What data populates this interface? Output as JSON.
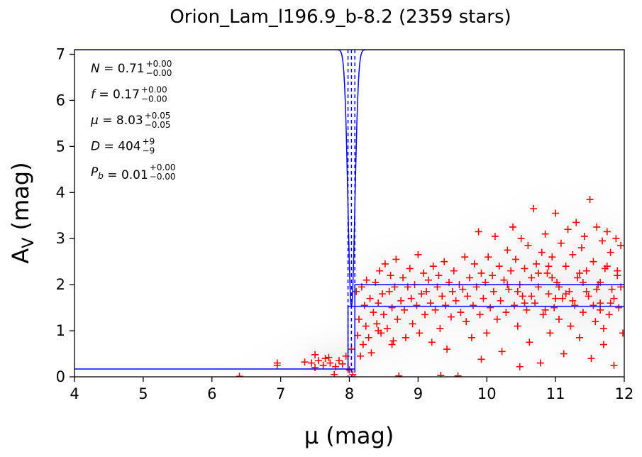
{
  "chart_data": {
    "type": "scatter",
    "title": "Orion_Lam_l196.9_b-8.2 (2359 stars)",
    "xlabel": "μ (mag)",
    "ylabel_main": "A",
    "ylabel_sub": "V",
    "ylabel_unit": " (mag)",
    "xlim": [
      4,
      12
    ],
    "ylim": [
      0,
      7.1
    ],
    "x_ticks": [
      "4",
      "5",
      "6",
      "7",
      "8",
      "9",
      "10",
      "11",
      "12"
    ],
    "y_ticks": [
      "0",
      "1",
      "2",
      "3",
      "4",
      "5",
      "6",
      "7"
    ],
    "annotations": [
      {
        "sym": "N",
        "val": "0.71",
        "sup": "+0.00",
        "sub": "−0.00"
      },
      {
        "sym": "f",
        "val": "0.17",
        "sup": "+0.00",
        "sub": "−0.00"
      },
      {
        "sym": "μ",
        "val": "8.03",
        "sup": "+0.05",
        "sub": "−0.05"
      },
      {
        "sym": "D",
        "val": "404",
        "sup": "+9",
        "sub": "−9"
      },
      {
        "sym": "P",
        "symsub": "b",
        "val": "0.01",
        "sup": "+0.00",
        "sub": "−0.00"
      }
    ],
    "model": {
      "foreground_av": 0.17,
      "jump_mu": 8.03,
      "background_upper_av": 2.0,
      "background_lower_av": 1.53,
      "jump_mu_lower": 7.98,
      "jump_mu_upper": 8.08
    },
    "colors": {
      "stars": "#ff0000",
      "model": "#0000ff",
      "density": "#000000"
    },
    "stars": [
      [
        6.4,
        0.01
      ],
      [
        6.95,
        0.3
      ],
      [
        6.95,
        0.25
      ],
      [
        7.35,
        0.32
      ],
      [
        7.45,
        0.3
      ],
      [
        7.5,
        0.2
      ],
      [
        7.55,
        0.35
      ],
      [
        7.5,
        0.48
      ],
      [
        7.62,
        0.25
      ],
      [
        7.65,
        0.4
      ],
      [
        7.72,
        0.3
      ],
      [
        7.78,
        0.05
      ],
      [
        7.8,
        0.22
      ],
      [
        7.85,
        0.35
      ],
      [
        7.9,
        0.28
      ],
      [
        7.95,
        0.45
      ],
      [
        8.0,
        0.15
      ],
      [
        8.03,
        0.6
      ],
      [
        8.05,
        0.05
      ],
      [
        8.1,
        1.85
      ],
      [
        8.12,
        0.9
      ],
      [
        8.14,
        1.25
      ],
      [
        8.16,
        0.45
      ],
      [
        8.18,
        1.95
      ],
      [
        8.2,
        0.7
      ],
      [
        8.22,
        1.55
      ],
      [
        8.24,
        1.1
      ],
      [
        8.25,
        2.1
      ],
      [
        8.28,
        0.85
      ],
      [
        8.3,
        1.7
      ],
      [
        8.32,
        0.52
      ],
      [
        8.35,
        1.4
      ],
      [
        8.38,
        2.05
      ],
      [
        8.4,
        1.15
      ],
      [
        8.42,
        1.6
      ],
      [
        8.44,
        2.3
      ],
      [
        8.46,
        0.95
      ],
      [
        8.48,
        1.8
      ],
      [
        8.5,
        1.35
      ],
      [
        8.52,
        2.45
      ],
      [
        8.55,
        1.05
      ],
      [
        8.58,
        1.85
      ],
      [
        8.6,
        2.2
      ],
      [
        8.62,
        1.5
      ],
      [
        8.64,
        0.78
      ],
      [
        8.66,
        1.95
      ],
      [
        8.68,
        2.55
      ],
      [
        8.7,
        1.25
      ],
      [
        8.72,
        0.02
      ],
      [
        8.75,
        1.65
      ],
      [
        8.78,
        2.15
      ],
      [
        8.8,
        1.45
      ],
      [
        8.82,
        0.85
      ],
      [
        8.85,
        1.95
      ],
      [
        8.88,
        2.35
      ],
      [
        8.9,
        1.7
      ],
      [
        8.92,
        1.15
      ],
      [
        8.95,
        2.0
      ],
      [
        8.98,
        1.55
      ],
      [
        9.0,
        2.65
      ],
      [
        9.02,
        0.95
      ],
      [
        9.05,
        1.8
      ],
      [
        9.08,
        2.25
      ],
      [
        9.1,
        1.35
      ],
      [
        9.12,
        1.85
      ],
      [
        9.15,
        2.1
      ],
      [
        9.18,
        1.6
      ],
      [
        9.2,
        0.75
      ],
      [
        9.22,
        2.4
      ],
      [
        9.25,
        1.45
      ],
      [
        9.28,
        1.95
      ],
      [
        9.3,
        2.2
      ],
      [
        9.32,
        1.05
      ],
      [
        9.35,
        1.75
      ],
      [
        9.38,
        2.5
      ],
      [
        9.4,
        1.55
      ],
      [
        9.42,
        0.6
      ],
      [
        9.45,
        2.05
      ],
      [
        9.48,
        1.3
      ],
      [
        9.5,
        1.85
      ],
      [
        9.52,
        2.3
      ],
      [
        9.55,
        1.65
      ],
      [
        9.58,
        0.02
      ],
      [
        9.6,
        2.0
      ],
      [
        9.62,
        1.4
      ],
      [
        9.65,
        1.9
      ],
      [
        9.68,
        2.6
      ],
      [
        9.7,
        1.2
      ],
      [
        9.72,
        1.75
      ],
      [
        9.75,
        2.15
      ],
      [
        9.78,
        0.85
      ],
      [
        9.8,
        1.55
      ],
      [
        9.82,
        2.45
      ],
      [
        9.85,
        1.95
      ],
      [
        9.88,
        3.15
      ],
      [
        9.9,
        1.35
      ],
      [
        9.92,
        2.25
      ],
      [
        9.95,
        1.7
      ],
      [
        9.98,
        2.05
      ],
      [
        10.0,
        0.95
      ],
      [
        10.02,
        2.6
      ],
      [
        10.05,
        1.5
      ],
      [
        10.08,
        2.2
      ],
      [
        10.1,
        1.85
      ],
      [
        10.12,
        3.05
      ],
      [
        10.15,
        1.25
      ],
      [
        10.18,
        2.4
      ],
      [
        10.2,
        1.65
      ],
      [
        10.22,
        0.55
      ],
      [
        10.25,
        2.1
      ],
      [
        10.28,
        1.4
      ],
      [
        10.3,
        2.75
      ],
      [
        10.32,
        1.9
      ],
      [
        10.35,
        2.3
      ],
      [
        10.38,
        3.25
      ],
      [
        10.4,
        1.55
      ],
      [
        10.42,
        2.55
      ],
      [
        10.45,
        1.1
      ],
      [
        10.48,
        2.0
      ],
      [
        10.5,
        3.0
      ],
      [
        10.52,
        1.75
      ],
      [
        10.55,
        2.35
      ],
      [
        10.58,
        1.45
      ],
      [
        10.6,
        2.85
      ],
      [
        10.62,
        0.75
      ],
      [
        10.65,
        2.15
      ],
      [
        10.68,
        3.65
      ],
      [
        10.7,
        1.6
      ],
      [
        10.72,
        2.45
      ],
      [
        10.75,
        1.95
      ],
      [
        10.78,
        0.3
      ],
      [
        10.8,
        2.7
      ],
      [
        10.82,
        1.35
      ],
      [
        10.85,
        3.1
      ],
      [
        10.88,
        2.25
      ],
      [
        10.9,
        1.8
      ],
      [
        10.92,
        0.95
      ],
      [
        10.95,
        2.6
      ],
      [
        10.98,
        1.5
      ],
      [
        11.0,
        3.55
      ],
      [
        11.02,
        2.05
      ],
      [
        11.05,
        1.25
      ],
      [
        11.08,
        2.9
      ],
      [
        11.1,
        1.7
      ],
      [
        11.12,
        0.5
      ],
      [
        11.15,
        2.4
      ],
      [
        11.18,
        3.2
      ],
      [
        11.2,
        1.85
      ],
      [
        11.22,
        1.1
      ],
      [
        11.25,
        2.65
      ],
      [
        11.28,
        1.55
      ],
      [
        11.3,
        3.35
      ],
      [
        11.32,
        2.15
      ],
      [
        11.35,
        0.85
      ],
      [
        11.38,
        2.8
      ],
      [
        11.4,
        1.4
      ],
      [
        11.42,
        3.05
      ],
      [
        11.45,
        2.3
      ],
      [
        11.48,
        1.75
      ],
      [
        11.5,
        3.85
      ],
      [
        11.52,
        0.4
      ],
      [
        11.55,
        2.5
      ],
      [
        11.58,
        1.2
      ],
      [
        11.6,
        3.25
      ],
      [
        11.62,
        2.0
      ],
      [
        11.65,
        1.6
      ],
      [
        11.68,
        2.95
      ],
      [
        11.7,
        0.7
      ],
      [
        11.72,
        2.35
      ],
      [
        11.75,
        3.15
      ],
      [
        11.78,
        1.35
      ],
      [
        11.8,
        2.7
      ],
      [
        11.82,
        1.9
      ],
      [
        11.85,
        0.25
      ],
      [
        11.88,
        3.0
      ],
      [
        11.9,
        2.2
      ],
      [
        11.92,
        1.5
      ],
      [
        11.95,
        2.85
      ],
      [
        11.98,
        0.95
      ],
      [
        10.65,
        1.75
      ],
      [
        10.85,
        1.45
      ],
      [
        11.05,
        1.95
      ],
      [
        11.25,
        1.65
      ],
      [
        11.45,
        1.85
      ],
      [
        11.65,
        2.05
      ],
      [
        11.85,
        1.7
      ],
      [
        10.45,
        1.85
      ],
      [
        10.95,
        2.15
      ],
      [
        11.35,
        2.25
      ],
      [
        11.55,
        1.55
      ],
      [
        11.75,
        2.4
      ],
      [
        11.95,
        1.95
      ],
      [
        10.75,
        2.25
      ],
      [
        11.15,
        1.8
      ],
      [
        11.65,
        1.45
      ],
      [
        10.55,
        1.6
      ],
      [
        11.0,
        1.7
      ],
      [
        11.4,
        2.05
      ],
      [
        11.8,
        1.6
      ],
      [
        11.9,
        2.3
      ],
      [
        10.3,
        2.0
      ],
      [
        10.9,
        2.4
      ],
      [
        11.6,
        1.9
      ],
      [
        8.42,
        1.0
      ],
      [
        9.33,
        0.03
      ],
      [
        7.7,
        0.42
      ],
      [
        8.62,
        0.7
      ],
      [
        9.92,
        0.38
      ],
      [
        10.48,
        0.22
      ],
      [
        11.7,
        1.05
      ]
    ]
  }
}
